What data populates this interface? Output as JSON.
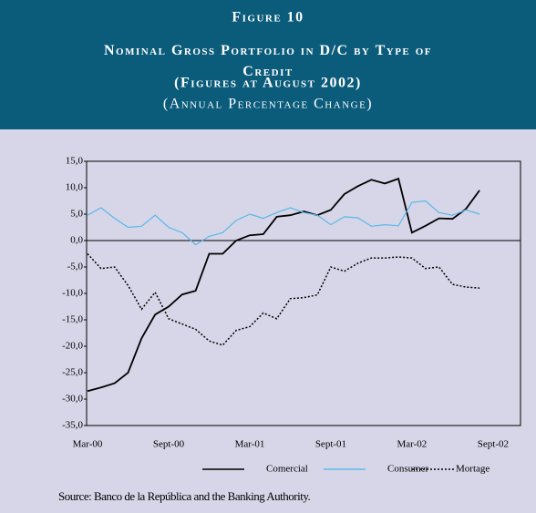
{
  "chart_data": {
    "type": "line",
    "figure_label": "Figure 10",
    "title": "Nominal Gross Portfolio in D/C by Type of Credit",
    "subtitle": "(Figures at August 2002)",
    "subtitle2": "(Annual Percentage Change)",
    "source": "Source: Banco de la República and the Banking Authority.",
    "categories": [
      "Mar-00",
      null,
      null,
      null,
      null,
      null,
      "Sept-00",
      null,
      null,
      null,
      null,
      null,
      "Mar-01",
      null,
      null,
      null,
      null,
      null,
      "Sept-01",
      null,
      null,
      null,
      null,
      null,
      "Mar-02",
      null,
      null,
      null,
      null,
      null,
      "Sept-02",
      null,
      null
    ],
    "series": [
      {
        "name": "Comercial",
        "color": "#000000",
        "dash": "solid",
        "values": [
          -28.5,
          -27.8,
          -27,
          -25,
          -18.5,
          -14,
          -12.5,
          -10.2,
          -9.5,
          -2.5,
          -2.5,
          0,
          1,
          1.2,
          4.5,
          4.8,
          5.5,
          4.8,
          5.8,
          8.8,
          10.3,
          11.5,
          10.8,
          11.7,
          1.5,
          2.8,
          4.2,
          4.1,
          6,
          9.5,
          null,
          null,
          null
        ]
      },
      {
        "name": "Consumer",
        "color": "#5bb8e8",
        "dash": "solid",
        "values": [
          4.8,
          6.2,
          4.2,
          2.5,
          2.7,
          4.8,
          2.5,
          1.5,
          -0.8,
          0.8,
          1.5,
          3.8,
          5,
          4.2,
          5.3,
          6.2,
          5.3,
          4.8,
          3,
          4.5,
          4.3,
          2.7,
          3,
          2.8,
          7.2,
          7.5,
          5.3,
          4.8,
          5.8,
          5,
          null,
          null,
          null
        ]
      },
      {
        "name": "Mortage",
        "color": "#000000",
        "dash": "dotted",
        "values": [
          -2.5,
          -5.3,
          -5,
          -8.5,
          -13,
          -9.8,
          -14.8,
          -15.8,
          -16.8,
          -19,
          -19.8,
          -17,
          -16.3,
          -13.7,
          -14.8,
          -11,
          -10.8,
          -10.3,
          -5,
          -5.8,
          -4.3,
          -3.3,
          -3.3,
          -3.1,
          -3.3,
          -5.3,
          -5,
          -8.3,
          -8.8,
          -9,
          null,
          null,
          null
        ]
      }
    ],
    "ylim": [
      -35,
      15
    ],
    "yticks": [
      {
        "value": -35,
        "label": "-35,0"
      },
      {
        "value": -30,
        "label": "-30,0"
      },
      {
        "value": -25,
        "label": "-25,0"
      },
      {
        "value": -20,
        "label": "-20,0"
      },
      {
        "value": -15,
        "label": "-15,0"
      },
      {
        "value": -10,
        "label": "-10,0"
      },
      {
        "value": -5,
        "label": "-5,0"
      },
      {
        "value": 0,
        "label": "0,0"
      },
      {
        "value": 5,
        "label": "5,0"
      },
      {
        "value": 10,
        "label": "10,0"
      },
      {
        "value": 15,
        "label": "15,0"
      }
    ],
    "grid": false
  }
}
